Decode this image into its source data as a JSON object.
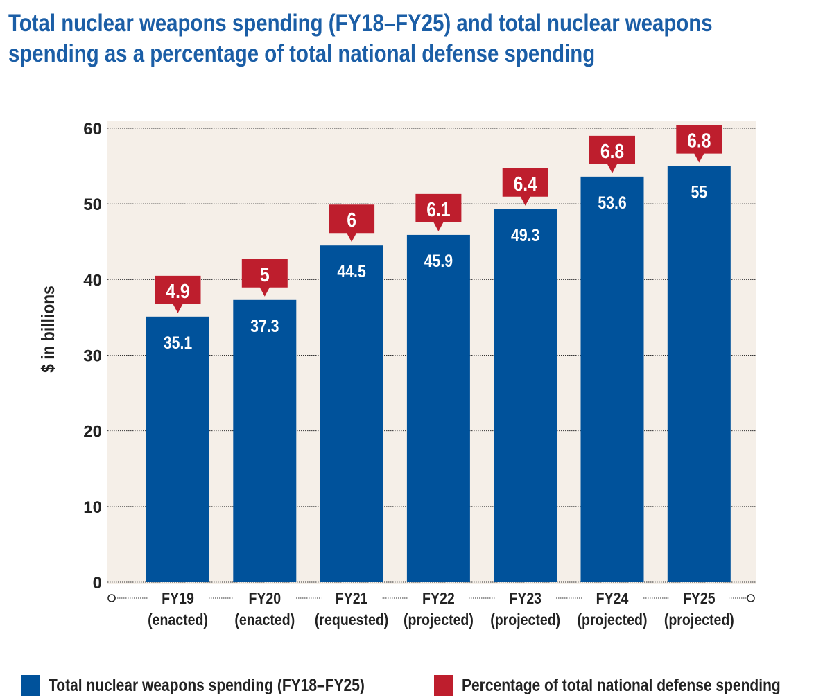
{
  "title_lines": [
    "Total nuclear weapons spending (FY18–FY25) and total nuclear weapons",
    "spending as a percentage of total national defense spending"
  ],
  "colors": {
    "bar": "#00529b",
    "callout": "#be1e2d",
    "plot_bg": "#f5efe8",
    "title": "#1b5ea6"
  },
  "chart_data": {
    "type": "bar",
    "title": "Total nuclear weapons spending (FY18–FY25) and total nuclear weapons spending as a percentage of total national defense spending",
    "ylabel": "$ in billions",
    "xlabel": "",
    "ylim": [
      0,
      60
    ],
    "yticks": [
      0,
      10,
      20,
      30,
      40,
      50,
      60
    ],
    "grid": true,
    "legend_position": "bottom",
    "categories": [
      {
        "year": "FY19",
        "status": "(enacted)"
      },
      {
        "year": "FY20",
        "status": "(enacted)"
      },
      {
        "year": "FY21",
        "status": "(requested)"
      },
      {
        "year": "FY22",
        "status": "(projected)"
      },
      {
        "year": "FY23",
        "status": "(projected)"
      },
      {
        "year": "FY24",
        "status": "(projected)"
      },
      {
        "year": "FY25",
        "status": "(projected)"
      }
    ],
    "series": [
      {
        "name": "Total nuclear weapons spending (FY18–FY25)",
        "values": [
          35.1,
          37.3,
          44.5,
          45.9,
          49.3,
          53.6,
          55
        ]
      },
      {
        "name": "Percentage of total national defense spending",
        "values": [
          4.9,
          5,
          6,
          6.1,
          6.4,
          6.8,
          6.8
        ]
      }
    ]
  }
}
